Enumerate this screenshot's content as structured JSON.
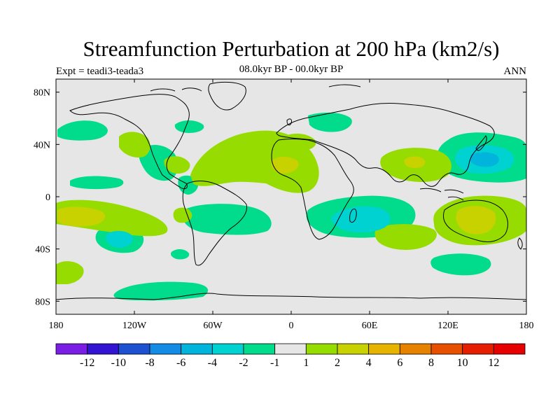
{
  "chart_data": {
    "type": "heatmap",
    "title": "Streamfunction Perturbation at 200 hPa (km2/s)",
    "subtitle": "08.0kyr BP - 00.0kyr BP",
    "left_label": "Expt = teadi3-teada3",
    "right_label": "ANN",
    "lon_range": [
      -180,
      180
    ],
    "lat_range": [
      -90,
      90
    ],
    "x_ticks": [
      {
        "value": -180,
        "label": "180"
      },
      {
        "value": -120,
        "label": "120W"
      },
      {
        "value": -60,
        "label": "60W"
      },
      {
        "value": 0,
        "label": "0"
      },
      {
        "value": 60,
        "label": "60E"
      },
      {
        "value": 120,
        "label": "120E"
      },
      {
        "value": 180,
        "label": "180"
      }
    ],
    "y_ticks": [
      {
        "value": 80,
        "label": "80N"
      },
      {
        "value": 40,
        "label": "40N"
      },
      {
        "value": 0,
        "label": "0"
      },
      {
        "value": -40,
        "label": "40S"
      },
      {
        "value": -80,
        "label": "80S"
      }
    ],
    "colorbar": {
      "boundaries": [
        "-12",
        "-10",
        "-8",
        "-6",
        "-4",
        "-2",
        "-1",
        "1",
        "2",
        "4",
        "6",
        "8",
        "10",
        "12"
      ],
      "colors": [
        "#7a1ee6",
        "#3214d2",
        "#1e50d2",
        "#148ce6",
        "#00b4dc",
        "#00d2d2",
        "#00dc8c",
        "#e6e6e6",
        "#96dc00",
        "#c8d200",
        "#e6b400",
        "#e68200",
        "#e65000",
        "#e61e00",
        "#e60000"
      ]
    },
    "regions": [
      {
        "level": "-1 to -2",
        "center_lon": 155,
        "center_lat": 32,
        "peak": -4
      },
      {
        "level": "-1 to -2",
        "center_lon": 40,
        "center_lat": -20,
        "peak": -4
      },
      {
        "level": "-1 to -2",
        "center_lon": -135,
        "center_lat": -30,
        "peak": -4
      },
      {
        "level": "-1 to -2",
        "center_lon": -160,
        "center_lat": 40,
        "peak": -1
      },
      {
        "level": "-1 to -2",
        "center_lon": -80,
        "center_lat": 55,
        "peak": -1
      },
      {
        "level": "-1 to -2",
        "center_lon": 40,
        "center_lat": 63,
        "peak": -1
      },
      {
        "level": "-1 to -2",
        "center_lon": -70,
        "center_lat": -15,
        "peak": -1
      },
      {
        "level": "-1 to -2",
        "center_lon": -120,
        "center_lat": -70,
        "peak": -1
      },
      {
        "level": "-1 to -2",
        "center_lon": 135,
        "center_lat": -50,
        "peak": -1
      },
      {
        "level": "1 to 2",
        "center_lon": -30,
        "center_lat": 30,
        "peak": 2
      },
      {
        "level": "1 to 2",
        "center_lon": 95,
        "center_lat": 28,
        "peak": 2
      },
      {
        "level": "1 to 2",
        "center_lon": 145,
        "center_lat": -20,
        "peak": 2
      },
      {
        "level": "1 to 2",
        "center_lon": -150,
        "center_lat": -15,
        "peak": 2
      },
      {
        "level": "1 to 2",
        "center_lon": -5,
        "center_lat": 10,
        "peak": 2
      },
      {
        "level": "1 to 2",
        "center_lon": 95,
        "center_lat": -22,
        "peak": 1
      },
      {
        "level": "1 to 2",
        "center_lon": -160,
        "center_lat": -55,
        "peak": 1
      }
    ]
  }
}
